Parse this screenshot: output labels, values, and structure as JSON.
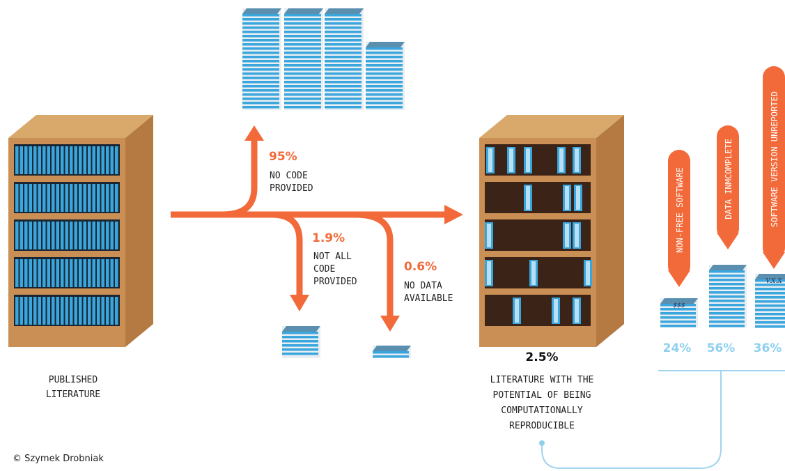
{
  "published": {
    "lines": [
      "PUBLISHED",
      "LITERATURE"
    ]
  },
  "flows": [
    {
      "percent": "95%",
      "lines": [
        "NO CODE",
        "PROVIDED"
      ]
    },
    {
      "percent": "1.9%",
      "lines": [
        "NOT ALL",
        "CODE",
        "PROVIDED"
      ]
    },
    {
      "percent": "0.6%",
      "lines": [
        "NO DATA",
        "AVAILABLE"
      ]
    }
  ],
  "reproducible": {
    "percent": "2.5%",
    "lines": [
      "LITERATURE WITH THE",
      "POTENTIAL OF BEING",
      "COMPUTATIONALLY",
      "REPRODUCIBLE"
    ]
  },
  "issues": [
    {
      "label": "NON-FREE SOFTWARE",
      "percent": "24%",
      "icon": "$$$"
    },
    {
      "label": "DATA INMCOMPLETE",
      "percent": "56%"
    },
    {
      "label": "SOFTWARE VERSION UNREPORTED",
      "percent": "36%",
      "icon": "V.X.X"
    }
  ],
  "credit": "© Szymek Drobniak"
}
